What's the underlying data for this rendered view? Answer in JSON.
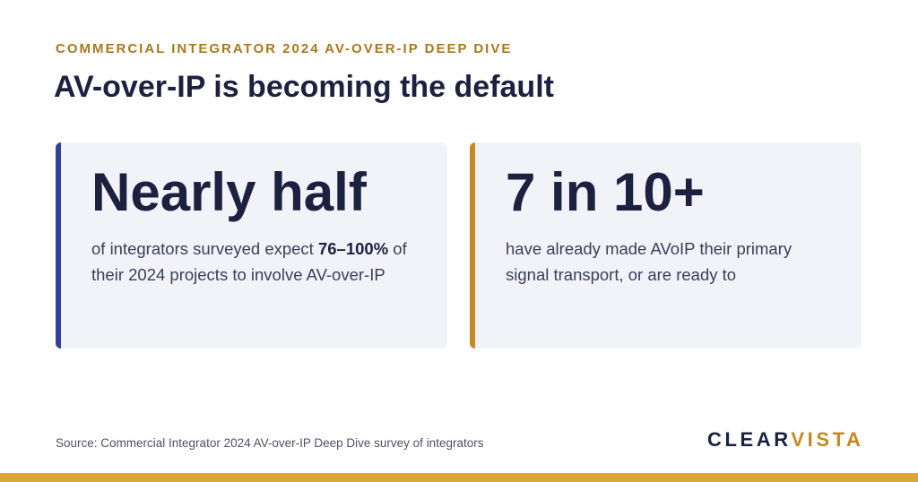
{
  "header": {
    "eyebrow": "COMMERCIAL INTEGRATOR 2024 AV-OVER-IP DEEP DIVE",
    "title": "AV-over-IP is becoming the default"
  },
  "cards": [
    {
      "headline": "Nearly half",
      "text_before": "of integrators surveyed expect ",
      "text_bold": "76–100%",
      "text_after": " of their 2024 projects to involve AV-over-IP",
      "accent": "#343f98"
    },
    {
      "headline": "7 in 10+",
      "text": "have already made AVoIP their primary signal transport, or are ready to",
      "accent": "#c48a22"
    }
  ],
  "footer": {
    "source": "Source: Commercial Integrator 2024 AV-over-IP Deep Dive survey of integrators",
    "logo_part1": "CLEAR",
    "logo_part2": "VISTA"
  },
  "colors": {
    "navy": "#1c2140",
    "gold": "#c48a22",
    "bottom_bar": "#d9a63b",
    "card_bg": "#f2f3f9"
  }
}
